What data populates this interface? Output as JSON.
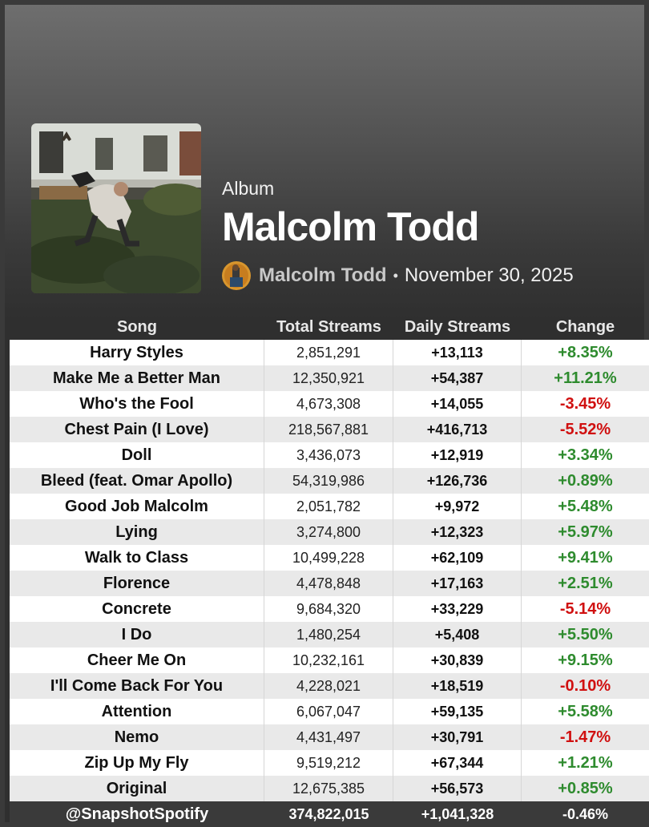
{
  "album": {
    "type_label": "Album",
    "title": "Malcolm Todd",
    "artist": "Malcolm Todd",
    "separator": "•",
    "release_date": "November 30, 2025"
  },
  "table": {
    "headers": [
      "Song",
      "Total Streams",
      "Daily Streams",
      "Change"
    ],
    "rows": [
      {
        "song": "Harry Styles",
        "total": "2,851,291",
        "daily": "+13,113",
        "change": "+8.35%",
        "trend": "up"
      },
      {
        "song": "Make Me a Better Man",
        "total": "12,350,921",
        "daily": "+54,387",
        "change": "+11.21%",
        "trend": "up"
      },
      {
        "song": "Who's the Fool",
        "total": "4,673,308",
        "daily": "+14,055",
        "change": "-3.45%",
        "trend": "down"
      },
      {
        "song": "Chest Pain (I Love)",
        "total": "218,567,881",
        "daily": "+416,713",
        "change": "-5.52%",
        "trend": "down"
      },
      {
        "song": "Doll",
        "total": "3,436,073",
        "daily": "+12,919",
        "change": "+3.34%",
        "trend": "up"
      },
      {
        "song": "Bleed (feat. Omar Apollo)",
        "total": "54,319,986",
        "daily": "+126,736",
        "change": "+0.89%",
        "trend": "up"
      },
      {
        "song": "Good Job Malcolm",
        "total": "2,051,782",
        "daily": "+9,972",
        "change": "+5.48%",
        "trend": "up"
      },
      {
        "song": "Lying",
        "total": "3,274,800",
        "daily": "+12,323",
        "change": "+5.97%",
        "trend": "up"
      },
      {
        "song": "Walk to Class",
        "total": "10,499,228",
        "daily": "+62,109",
        "change": "+9.41%",
        "trend": "up"
      },
      {
        "song": "Florence",
        "total": "4,478,848",
        "daily": "+17,163",
        "change": "+2.51%",
        "trend": "up"
      },
      {
        "song": "Concrete",
        "total": "9,684,320",
        "daily": "+33,229",
        "change": "-5.14%",
        "trend": "down"
      },
      {
        "song": "I Do",
        "total": "1,480,254",
        "daily": "+5,408",
        "change": "+5.50%",
        "trend": "up"
      },
      {
        "song": "Cheer Me On",
        "total": "10,232,161",
        "daily": "+30,839",
        "change": "+9.15%",
        "trend": "up"
      },
      {
        "song": "I'll Come Back For You",
        "total": "4,228,021",
        "daily": "+18,519",
        "change": "-0.10%",
        "trend": "down"
      },
      {
        "song": "Attention",
        "total": "6,067,047",
        "daily": "+59,135",
        "change": "+5.58%",
        "trend": "up"
      },
      {
        "song": "Nemo",
        "total": "4,431,497",
        "daily": "+30,791",
        "change": "-1.47%",
        "trend": "down"
      },
      {
        "song": "Zip Up My Fly",
        "total": "9,519,212",
        "daily": "+67,344",
        "change": "+1.21%",
        "trend": "up"
      },
      {
        "song": "Original",
        "total": "12,675,385",
        "daily": "+56,573",
        "change": "+0.85%",
        "trend": "up"
      }
    ],
    "footer": {
      "handle": "@SnapshotSpotify",
      "total": "374,822,015",
      "daily": "+1,041,328",
      "change": "-0.46%"
    }
  },
  "colors": {
    "positive": "#2e8b2e",
    "negative": "#d01010"
  },
  "icons": {
    "cover": "album-cover-image",
    "avatar": "artist-avatar-image"
  }
}
